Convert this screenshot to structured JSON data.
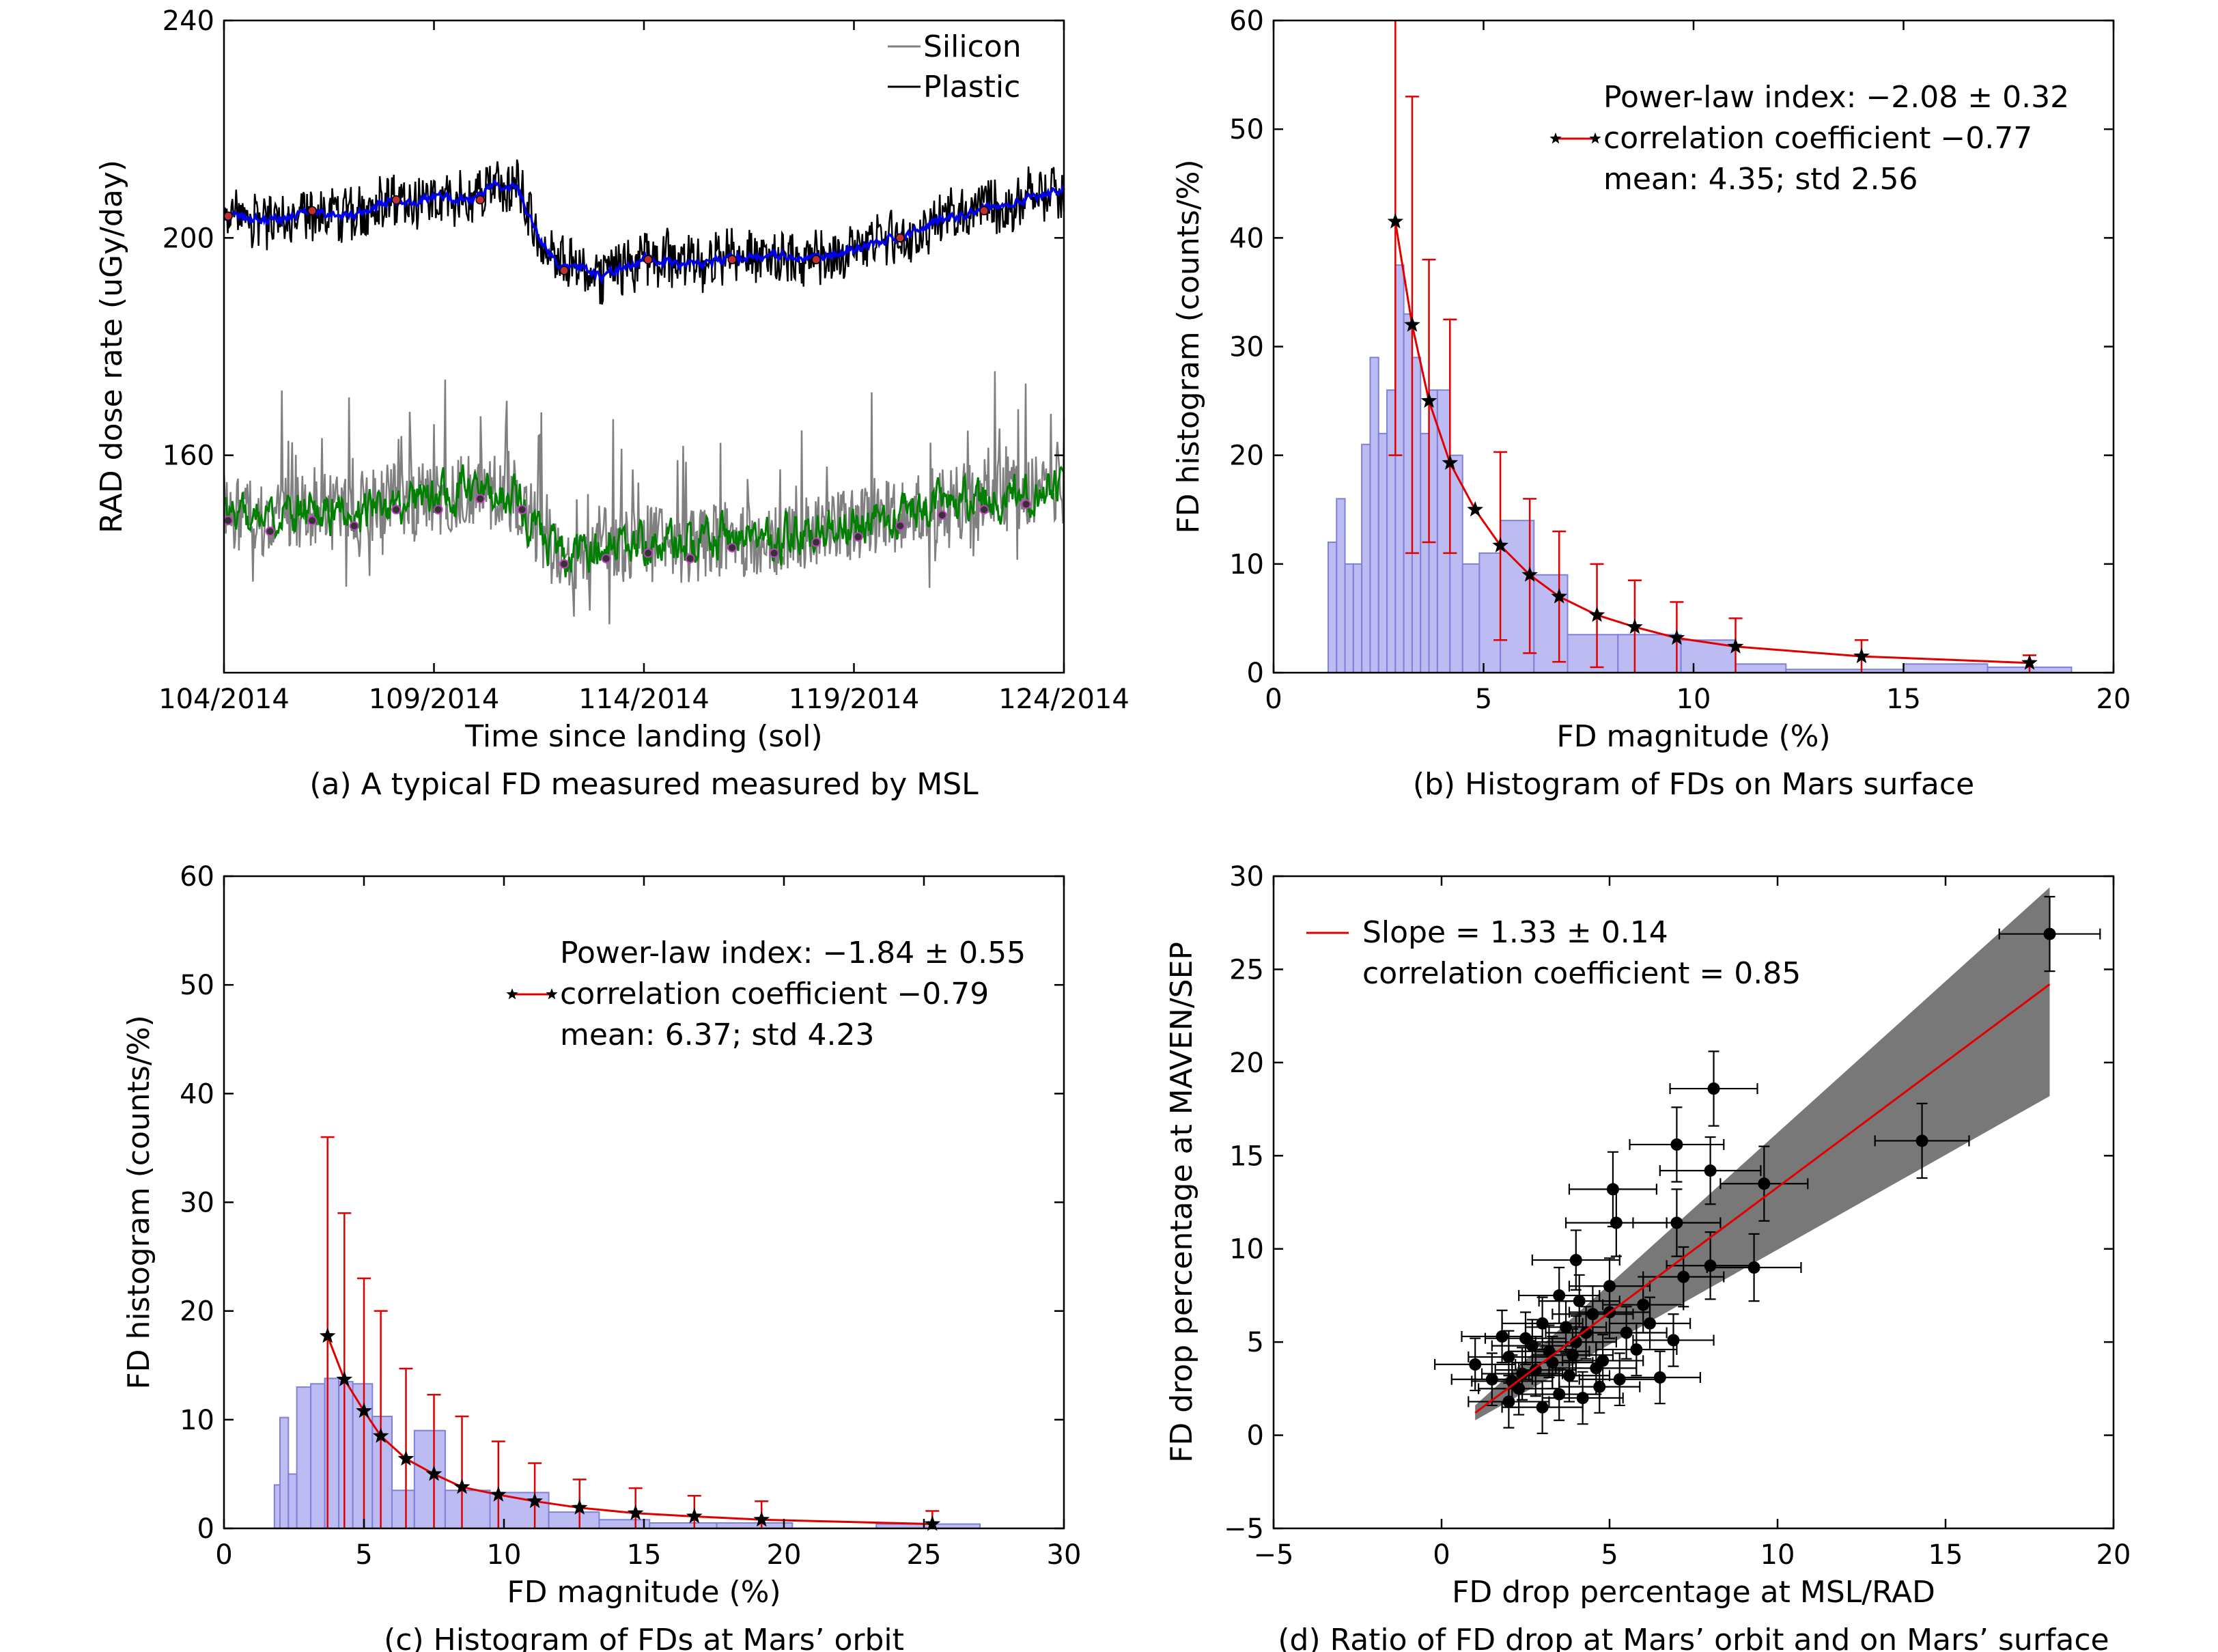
{
  "chart_data": [
    {
      "type": "line",
      "caption": "(a) A typical FD measured measured by MSL",
      "xlabel": "Time since landing (sol)",
      "ylabel": "RAD dose rate (uGy/day)",
      "xlim": [
        104,
        124
      ],
      "ylim": [
        120,
        240
      ],
      "x_ticks": [
        104,
        109,
        114,
        119,
        124
      ],
      "x_tick_labels": [
        "104/2014",
        "109/2014",
        "114/2014",
        "119/2014",
        "124/2014"
      ],
      "y_ticks": [
        160,
        200,
        240
      ],
      "y_tick_labels": [
        "160",
        "200",
        "240"
      ],
      "legend": [
        "Silicon",
        "Plastic"
      ],
      "legend_position": "top-right",
      "colors": {
        "silicon": "#808080",
        "plastic": "#000000",
        "plastic_smooth": "#0000ee",
        "silicon_smooth": "#008000"
      },
      "series": [
        {
          "name": "Plastic",
          "x": [
            104,
            105,
            106,
            107,
            108,
            108.5,
            109,
            110,
            110.5,
            111,
            111.5,
            112,
            112.5,
            113,
            114,
            115,
            116,
            117,
            118,
            119,
            120,
            121,
            122,
            123,
            124
          ],
          "values": [
            204,
            203,
            205,
            204,
            207,
            206,
            208,
            207,
            210,
            209,
            200,
            194,
            195,
            193,
            196,
            195,
            196,
            197,
            196,
            198,
            200,
            203,
            205,
            207,
            209
          ]
        },
        {
          "name": "Silicon",
          "x": [
            104,
            105,
            106,
            107,
            108,
            108.5,
            109,
            110,
            110.5,
            111,
            111.5,
            112,
            112.5,
            113,
            114,
            115,
            116,
            117,
            118,
            119,
            120,
            121,
            122,
            123,
            124
          ],
          "values": [
            150,
            148,
            150,
            149,
            152,
            151,
            152,
            154,
            153,
            152,
            146,
            142,
            141,
            143,
            144,
            143,
            145,
            144,
            146,
            147,
            149,
            151,
            152,
            153,
            154
          ]
        }
      ]
    },
    {
      "type": "bar",
      "caption": "(b) Histogram of FDs on Mars surface",
      "xlabel": "FD magnitude (%)",
      "ylabel": "FD histogram (counts/%)",
      "xlim": [
        0,
        20
      ],
      "ylim": [
        0,
        60
      ],
      "x_ticks": [
        0,
        5,
        10,
        15,
        20
      ],
      "y_ticks": [
        0,
        10,
        20,
        30,
        40,
        50,
        60
      ],
      "annotations": [
        "Power-law index: −2.08 ± 0.32",
        "correlation coefficient −0.77",
        "mean: 4.35; std 2.56"
      ],
      "bins": [
        [
          1.3,
          1.5,
          12
        ],
        [
          1.5,
          1.7,
          16
        ],
        [
          1.7,
          1.9,
          10
        ],
        [
          1.9,
          2.1,
          10
        ],
        [
          2.1,
          2.3,
          21
        ],
        [
          2.3,
          2.5,
          29
        ],
        [
          2.5,
          2.7,
          22
        ],
        [
          2.7,
          2.9,
          26
        ],
        [
          2.9,
          3.1,
          37.5
        ],
        [
          3.1,
          3.3,
          33
        ],
        [
          3.3,
          3.5,
          29
        ],
        [
          3.5,
          3.7,
          22
        ],
        [
          3.7,
          3.9,
          26
        ],
        [
          3.9,
          4.2,
          26
        ],
        [
          4.2,
          4.5,
          20
        ],
        [
          4.5,
          4.9,
          10
        ],
        [
          4.9,
          5.4,
          11
        ],
        [
          5.4,
          6.2,
          14
        ],
        [
          6.2,
          7.0,
          9
        ],
        [
          7.0,
          8.2,
          3.5
        ],
        [
          8.2,
          9.7,
          3.5
        ],
        [
          9.7,
          11.0,
          3
        ],
        [
          11.0,
          12.2,
          0.8
        ],
        [
          12.2,
          15.0,
          0.3
        ],
        [
          15.0,
          17.0,
          0.8
        ],
        [
          17.0,
          19.0,
          0.5
        ]
      ],
      "fit": {
        "x": [
          2.9,
          3.3,
          3.7,
          4.2,
          4.8,
          5.4,
          6.1,
          6.8,
          7.7,
          8.6,
          9.6,
          11.0,
          14.0,
          18.0
        ],
        "y": [
          41.5,
          32,
          25,
          19.3,
          15,
          11.7,
          9,
          7,
          5.3,
          4.2,
          3.2,
          2.4,
          1.5,
          0.9
        ]
      },
      "error_bars": [
        {
          "x": 2.9,
          "y": 41.5,
          "lo": 20,
          "hi": 60
        },
        {
          "x": 3.3,
          "y": 32,
          "lo": 11,
          "hi": 53
        },
        {
          "x": 3.7,
          "y": 25,
          "lo": 12,
          "hi": 38
        },
        {
          "x": 4.2,
          "y": 19.3,
          "lo": 11,
          "hi": 32.5
        },
        {
          "x": 5.4,
          "y": 11.7,
          "lo": 3,
          "hi": 20.3
        },
        {
          "x": 6.1,
          "y": 9,
          "lo": 1.8,
          "hi": 16
        },
        {
          "x": 6.8,
          "y": 7,
          "lo": 1,
          "hi": 13
        },
        {
          "x": 7.7,
          "y": 5.3,
          "lo": 0.5,
          "hi": 10
        },
        {
          "x": 8.6,
          "y": 4.2,
          "lo": 0,
          "hi": 8.5
        },
        {
          "x": 9.6,
          "y": 3.2,
          "lo": 0,
          "hi": 6.5
        },
        {
          "x": 11.0,
          "y": 2.4,
          "lo": 0,
          "hi": 5
        },
        {
          "x": 14.0,
          "y": 1.5,
          "lo": 0,
          "hi": 3
        },
        {
          "x": 18.0,
          "y": 0.9,
          "lo": 0,
          "hi": 1.6
        }
      ],
      "colors": {
        "bars": "#b0b0f0",
        "bar_edge": "#8080d8",
        "fit": "#e00000"
      }
    },
    {
      "type": "bar",
      "caption": "(c) Histogram of FDs at Mars’ orbit",
      "xlabel": "FD magnitude (%)",
      "ylabel": "FD histogram (counts/%)",
      "xlim": [
        0,
        30
      ],
      "ylim": [
        0,
        60
      ],
      "x_ticks": [
        0,
        5,
        10,
        15,
        20,
        25,
        30
      ],
      "y_ticks": [
        0,
        10,
        20,
        30,
        40,
        50,
        60
      ],
      "annotations": [
        "Power-law index: −1.84 ± 0.55",
        "correlation coefficient −0.79",
        "mean: 6.37; std 4.23"
      ],
      "bins": [
        [
          1.8,
          2.0,
          4
        ],
        [
          2.0,
          2.3,
          10.2
        ],
        [
          2.3,
          2.6,
          5
        ],
        [
          2.6,
          3.1,
          13
        ],
        [
          3.1,
          3.6,
          13.3
        ],
        [
          3.6,
          4.1,
          13.8
        ],
        [
          4.1,
          4.6,
          13.5
        ],
        [
          4.6,
          5.3,
          13.3
        ],
        [
          5.3,
          6.0,
          10.3
        ],
        [
          6.0,
          6.8,
          3.5
        ],
        [
          6.8,
          7.9,
          9
        ],
        [
          7.9,
          9.5,
          3.5
        ],
        [
          9.5,
          11.6,
          3.3
        ],
        [
          11.6,
          13.4,
          1.5
        ],
        [
          13.4,
          15.2,
          0.8
        ],
        [
          15.2,
          17.6,
          0.5
        ],
        [
          17.6,
          20.3,
          0.5
        ],
        [
          23.3,
          27.0,
          0.4
        ]
      ],
      "fit": {
        "x": [
          3.7,
          4.3,
          5.0,
          5.6,
          6.5,
          7.5,
          8.5,
          9.8,
          11.1,
          12.7,
          14.7,
          16.8,
          19.2,
          25.3
        ],
        "y": [
          17.7,
          13.7,
          10.8,
          8.5,
          6.4,
          5,
          3.8,
          3.1,
          2.5,
          1.9,
          1.4,
          1.1,
          0.8,
          0.4
        ]
      },
      "error_bars": [
        {
          "x": 3.7,
          "y": 17.7,
          "lo": 0,
          "hi": 36
        },
        {
          "x": 4.3,
          "y": 13.7,
          "lo": 0,
          "hi": 29
        },
        {
          "x": 5.0,
          "y": 10.8,
          "lo": 0,
          "hi": 23
        },
        {
          "x": 5.6,
          "y": 8.5,
          "lo": 0,
          "hi": 20
        },
        {
          "x": 6.5,
          "y": 6.4,
          "lo": 0,
          "hi": 14.7
        },
        {
          "x": 7.5,
          "y": 5,
          "lo": 0,
          "hi": 12.3
        },
        {
          "x": 8.5,
          "y": 3.8,
          "lo": 0,
          "hi": 10.3
        },
        {
          "x": 9.8,
          "y": 3.1,
          "lo": 0,
          "hi": 8
        },
        {
          "x": 11.1,
          "y": 2.5,
          "lo": 0,
          "hi": 6
        },
        {
          "x": 12.7,
          "y": 1.9,
          "lo": 0,
          "hi": 4.5
        },
        {
          "x": 14.7,
          "y": 1.4,
          "lo": 0,
          "hi": 3.7
        },
        {
          "x": 16.8,
          "y": 1.1,
          "lo": 0,
          "hi": 3
        },
        {
          "x": 19.2,
          "y": 0.8,
          "lo": 0,
          "hi": 2.5
        },
        {
          "x": 25.3,
          "y": 0.4,
          "lo": 0,
          "hi": 1.6
        }
      ],
      "colors": {
        "bars": "#b0b0f0",
        "bar_edge": "#8080d8",
        "fit": "#e00000"
      }
    },
    {
      "type": "scatter",
      "caption": "(d) Ratio of FD drop at Mars’ orbit and on Mars’ surface",
      "xlabel": "FD drop percentage at MSL/RAD",
      "ylabel": "FD drop percentage at MAVEN/SEP",
      "xlim": [
        -5,
        20
      ],
      "ylim": [
        -5,
        30
      ],
      "x_ticks": [
        -5,
        0,
        5,
        10,
        15,
        20
      ],
      "x_tick_labels": [
        "−5",
        "0",
        "5",
        "10",
        "15",
        "20"
      ],
      "y_ticks": [
        -5,
        0,
        5,
        10,
        15,
        20,
        25,
        30
      ],
      "y_tick_labels": [
        "−5",
        "0",
        "5",
        "10",
        "15",
        "20",
        "25",
        "30"
      ],
      "annotations": [
        "Slope = 1.33 ± 0.14",
        "correlation coefficient = 0.85"
      ],
      "fit_line": {
        "x": [
          1.0,
          18.1
        ],
        "y": [
          1.2,
          24.2
        ]
      },
      "band": {
        "x": [
          1.0,
          18.1
        ],
        "upper": [
          1.6,
          29.4
        ],
        "lower": [
          0.8,
          18.2
        ]
      },
      "points": [
        [
          18.1,
          26.9,
          1.5,
          2.0
        ],
        [
          14.3,
          15.8,
          1.4,
          2.0
        ],
        [
          8.1,
          18.6,
          1.3,
          2.0
        ],
        [
          9.6,
          13.5,
          1.3,
          2.0
        ],
        [
          8.0,
          14.2,
          1.5,
          1.8
        ],
        [
          7.0,
          15.6,
          1.4,
          2.0
        ],
        [
          5.1,
          13.2,
          1.3,
          2.0
        ],
        [
          7.0,
          11.4,
          1.3,
          1.8
        ],
        [
          5.2,
          11.4,
          1.5,
          1.8
        ],
        [
          9.3,
          9.0,
          1.4,
          1.8
        ],
        [
          8.0,
          9.1,
          1.3,
          1.8
        ],
        [
          7.2,
          8.5,
          1.2,
          1.6
        ],
        [
          4.0,
          9.4,
          1.3,
          1.6
        ],
        [
          5.0,
          8.0,
          1.2,
          1.5
        ],
        [
          6.0,
          7.0,
          1.2,
          1.5
        ],
        [
          3.5,
          7.5,
          1.2,
          1.5
        ],
        [
          4.5,
          6.5,
          1.2,
          1.5
        ],
        [
          3.0,
          6.0,
          1.2,
          1.4
        ],
        [
          5.5,
          5.5,
          1.2,
          1.4
        ],
        [
          2.5,
          5.2,
          1.2,
          1.4
        ],
        [
          4.0,
          5.0,
          1.2,
          1.4
        ],
        [
          3.2,
          4.5,
          1.2,
          1.4
        ],
        [
          2.0,
          4.2,
          1.2,
          1.4
        ],
        [
          4.8,
          4.0,
          1.2,
          1.4
        ],
        [
          1.0,
          3.8,
          1.2,
          1.4
        ],
        [
          2.8,
          3.5,
          1.2,
          1.4
        ],
        [
          3.8,
          3.2,
          1.2,
          1.4
        ],
        [
          5.3,
          3.0,
          1.2,
          1.4
        ],
        [
          1.5,
          3.0,
          1.2,
          1.4
        ],
        [
          6.5,
          3.1,
          1.2,
          1.4
        ],
        [
          2.3,
          2.5,
          1.2,
          1.4
        ],
        [
          3.5,
          2.2,
          1.2,
          1.4
        ],
        [
          4.2,
          2.0,
          1.2,
          1.4
        ],
        [
          2.0,
          1.8,
          1.2,
          1.4
        ],
        [
          3.0,
          1.5,
          1.2,
          1.4
        ],
        [
          4.7,
          2.6,
          1.2,
          1.4
        ],
        [
          3.7,
          5.8,
          1.2,
          1.4
        ],
        [
          2.7,
          4.8,
          1.2,
          1.4
        ],
        [
          4.3,
          5.5,
          1.2,
          1.4
        ],
        [
          5.8,
          4.6,
          1.2,
          1.4
        ],
        [
          6.2,
          6.0,
          1.2,
          1.4
        ],
        [
          3.3,
          3.9,
          1.2,
          1.4
        ],
        [
          2.4,
          3.3,
          1.2,
          1.4
        ],
        [
          4.6,
          3.6,
          1.2,
          1.4
        ],
        [
          1.8,
          5.3,
          1.2,
          1.4
        ],
        [
          4.1,
          7.2,
          1.2,
          1.4
        ],
        [
          5.0,
          6.6,
          1.2,
          1.4
        ],
        [
          3.9,
          4.3,
          1.2,
          1.4
        ],
        [
          6.9,
          5.1,
          1.2,
          1.4
        ],
        [
          2.1,
          2.9,
          1.2,
          1.4
        ]
      ],
      "colors": {
        "fit": "#e00000",
        "band": "#787878",
        "points": "#000000"
      }
    }
  ]
}
